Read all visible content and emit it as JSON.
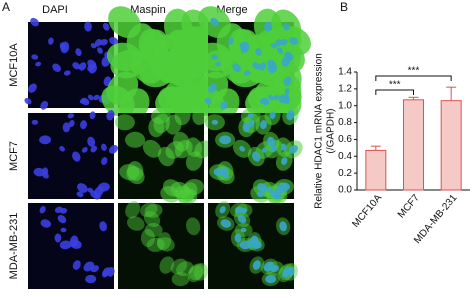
{
  "panel_a": {
    "letter": "A",
    "columns": [
      "DAPI",
      "Maspin",
      "Merge"
    ],
    "rows": [
      "MCF10A",
      "MCF7",
      "MDA-MB-231"
    ]
  },
  "chart_data": {
    "type": "bar",
    "letter": "B",
    "y_label": [
      "Relative HDAC1 mRNA expression",
      "(/GAPDH)"
    ],
    "categories": [
      "MCF10A",
      "MCF7",
      "MDA-MB-231"
    ],
    "values": [
      0.47,
      1.07,
      1.06
    ],
    "errors": [
      0.05,
      0.03,
      0.16
    ],
    "color": "#f5c9c6",
    "edge_color": "#d9534f",
    "ylim": [
      0,
      1.4
    ],
    "yticks": [
      {
        "value": 0,
        "label": "0.0"
      },
      0.2,
      0.4,
      0.6,
      0.8,
      {
        "value": 1,
        "label": "1.0"
      },
      1.2,
      1.4
    ],
    "significance": [
      "***",
      "***"
    ],
    "grid": false
  }
}
